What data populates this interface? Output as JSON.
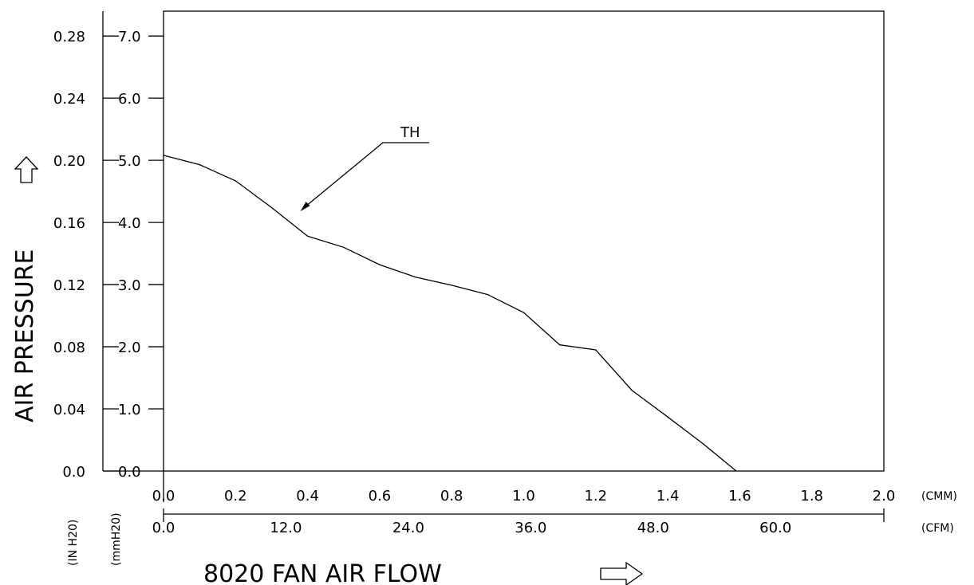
{
  "chart_data": {
    "type": "line",
    "title": "8020 FAN AIR FLOW",
    "xlabel": "8020 FAN AIR FLOW",
    "ylabel": "AIR PRESSURE",
    "x_units": [
      "(CMM)",
      "(CFM)"
    ],
    "y_units": [
      "(IN H20)",
      "(mmH20)"
    ],
    "xlim": [
      0,
      2.0
    ],
    "ylim": [
      0,
      7.4
    ],
    "x_ticks_cmm": [
      "0.0",
      "0.2",
      "0.4",
      "0.6",
      "0.8",
      "1.0",
      "1.2",
      "1.4",
      "1.6",
      "1.8",
      "2.0"
    ],
    "x_ticks_cfm": [
      "0.0",
      "12.0",
      "24.0",
      "36.0",
      "48.0",
      "60.0"
    ],
    "y_ticks_mmh2o": [
      "0.0",
      "1.0",
      "2.0",
      "3.0",
      "4.0",
      "5.0",
      "6.0",
      "7.0"
    ],
    "y_ticks_inh2o": [
      "0.0",
      "0.04",
      "0.08",
      "0.12",
      "0.16",
      "0.20",
      "0.24",
      "0.28"
    ],
    "grid": false,
    "series": [
      {
        "name": "TH",
        "x": [
          0.0,
          0.1,
          0.2,
          0.3,
          0.4,
          0.5,
          0.6,
          0.7,
          0.8,
          0.9,
          1.0,
          1.1,
          1.2,
          1.3,
          1.4,
          1.5,
          1.59
        ],
        "y": [
          5.08,
          4.93,
          4.67,
          4.24,
          3.78,
          3.6,
          3.32,
          3.12,
          2.99,
          2.84,
          2.55,
          2.03,
          1.95,
          1.3,
          0.87,
          0.43,
          0.0
        ]
      }
    ],
    "annotation": {
      "text": "TH",
      "x": 0.38,
      "y": 4.18
    }
  }
}
